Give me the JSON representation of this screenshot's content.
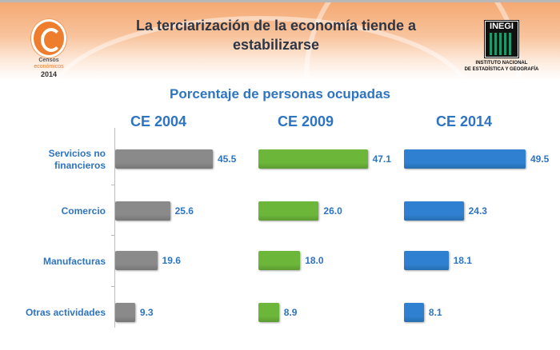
{
  "header": {
    "title": "La terciarización de la economía tiende a estabilizarse",
    "logo_left": {
      "line1": "Censos",
      "line2": "económicos",
      "line3": "2014"
    },
    "logo_right": {
      "name": "INEGI",
      "caption1": "INSTITUTO NACIONAL",
      "caption2": "DE ESTADÍSTICA Y GEOGRAFÍA"
    }
  },
  "chart_data": {
    "type": "bar",
    "orientation": "horizontal",
    "title": "Porcentaje de personas ocupadas",
    "categories": [
      "Servicios no financieros",
      "Comercio",
      "Manufacturas",
      "Otras actividades"
    ],
    "series": [
      {
        "name": "CE 2004",
        "values": [
          45.5,
          25.6,
          19.6,
          9.3
        ],
        "color": "#8a8a8a"
      },
      {
        "name": "CE 2009",
        "values": [
          47.1,
          26.0,
          18.0,
          8.9
        ],
        "color": "#6cb73a"
      },
      {
        "name": "CE 2014",
        "values": [
          49.5,
          24.3,
          18.1,
          8.1
        ],
        "color": "#2f80d0"
      }
    ],
    "xlabel": "",
    "ylabel": "",
    "grid": false,
    "legend": "none"
  }
}
